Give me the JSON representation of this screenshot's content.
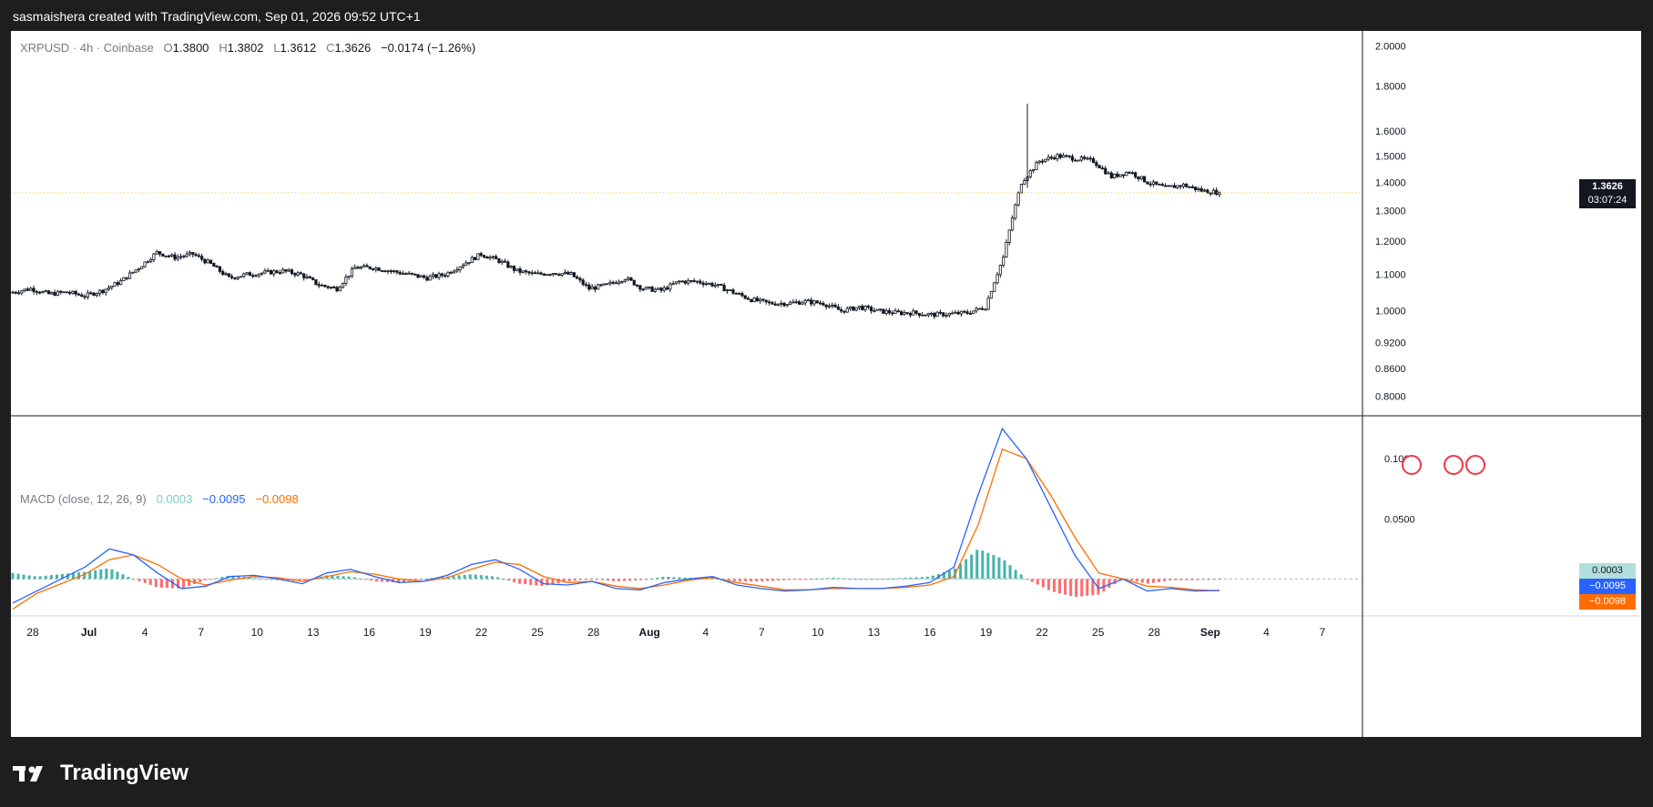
{
  "header": {
    "attribution": "sasmaishera created with TradingView.com, Sep 01, 2026 09:52 UTC+1"
  },
  "brand": {
    "name": "TradingView"
  },
  "legend": {
    "symbol": "XRPUSD · 4h · Coinbase",
    "o_label": "O",
    "o": "1.3800",
    "h_label": "H",
    "h": "1.3802",
    "l_label": "L",
    "l": "1.3612",
    "c_label": "C",
    "c": "1.3626",
    "change": "−0.0174 (−1.26%)"
  },
  "macd_legend": {
    "name": "MACD (close, 12, 26, 9)",
    "hist": "0.0003",
    "macd": "−0.0095",
    "signal": "−0.0098"
  },
  "price_badge": {
    "price": "1.3626",
    "countdown": "03:07:24"
  },
  "macd_badges": {
    "hist": "0.0003",
    "macd": "−0.0095",
    "signal": "−0.0098"
  },
  "colors": {
    "up": "#089981",
    "down": "#f23645",
    "macd": "#2962ff",
    "signal": "#ff6d00",
    "hist_up": "#26a69a",
    "hist_down": "#ff5252"
  },
  "chart_data": [
    {
      "type": "candlestick",
      "title": "XRPUSD · 4h · Coinbase",
      "y_scale": "log",
      "y_ticks": [
        "2.0000",
        "1.8000",
        "1.6000",
        "1.5000",
        "1.4000",
        "1.3000",
        "1.2000",
        "1.1000",
        "1.0000",
        "0.9200",
        "0.8600",
        "0.8000"
      ],
      "x_ticks": [
        "28",
        "Jul",
        "4",
        "7",
        "10",
        "13",
        "16",
        "19",
        "22",
        "25",
        "28",
        "Aug",
        "4",
        "7",
        "10",
        "13",
        "16",
        "19",
        "22",
        "25",
        "28",
        "Sep",
        "4",
        "7"
      ],
      "close_series": [
        [
          "Jun 26",
          1.05
        ],
        [
          "Jun 27",
          1.06
        ],
        [
          "Jun 28",
          1.045
        ],
        [
          "Jun 29",
          1.05
        ],
        [
          "Jun 30",
          1.04
        ],
        [
          "Jul 1",
          1.055
        ],
        [
          "Jul 2",
          1.08
        ],
        [
          "Jul 3",
          1.12
        ],
        [
          "Jul 4",
          1.165
        ],
        [
          "Jul 5",
          1.15
        ],
        [
          "Jul 6",
          1.16
        ],
        [
          "Jul 7",
          1.13
        ],
        [
          "Jul 8",
          1.09
        ],
        [
          "Jul 9",
          1.1
        ],
        [
          "Jul 10",
          1.105
        ],
        [
          "Jul 11",
          1.11
        ],
        [
          "Jul 12",
          1.1
        ],
        [
          "Jul 13",
          1.07
        ],
        [
          "Jul 14",
          1.06
        ],
        [
          "Jul 15",
          1.12
        ],
        [
          "Jul 16",
          1.12
        ],
        [
          "Jul 17",
          1.11
        ],
        [
          "Jul 18",
          1.1
        ],
        [
          "Jul 19",
          1.09
        ],
        [
          "Jul 20",
          1.1
        ],
        [
          "Jul 21",
          1.13
        ],
        [
          "Jul 22",
          1.16
        ],
        [
          "Jul 23",
          1.14
        ],
        [
          "Jul 24",
          1.11
        ],
        [
          "Jul 25",
          1.1
        ],
        [
          "Jul 26",
          1.105
        ],
        [
          "Jul 27",
          1.1
        ],
        [
          "Jul 28",
          1.06
        ],
        [
          "Jul 29",
          1.07
        ],
        [
          "Jul 30",
          1.09
        ],
        [
          "Jul 31",
          1.06
        ],
        [
          "Aug 1",
          1.055
        ],
        [
          "Aug 2",
          1.08
        ],
        [
          "Aug 3",
          1.08
        ],
        [
          "Aug 4",
          1.07
        ],
        [
          "Aug 5",
          1.05
        ],
        [
          "Aug 6",
          1.03
        ],
        [
          "Aug 7",
          1.02
        ],
        [
          "Aug 8",
          1.02
        ],
        [
          "Aug 9",
          1.025
        ],
        [
          "Aug 10",
          1.02
        ],
        [
          "Aug 11",
          1.0
        ],
        [
          "Aug 12",
          1.01
        ],
        [
          "Aug 13",
          1.0
        ],
        [
          "Aug 14",
          0.995
        ],
        [
          "Aug 15",
          0.995
        ],
        [
          "Aug 16",
          0.99
        ],
        [
          "Aug 17",
          0.992
        ],
        [
          "Aug 18",
          0.995
        ],
        [
          "Aug 19",
          1.01
        ],
        [
          "Aug 20",
          1.15
        ],
        [
          "Aug 21",
          1.4
        ],
        [
          "Aug 22",
          1.48
        ],
        [
          "Aug 23",
          1.5
        ],
        [
          "Aug 24",
          1.49
        ],
        [
          "Aug 25",
          1.48
        ],
        [
          "Aug 26",
          1.42
        ],
        [
          "Aug 27",
          1.44
        ],
        [
          "Aug 28",
          1.4
        ],
        [
          "Aug 29",
          1.38
        ],
        [
          "Aug 30",
          1.39
        ],
        [
          "Aug 31",
          1.37
        ],
        [
          "Sep 1",
          1.3626
        ]
      ],
      "last": {
        "open": 1.38,
        "high": 1.3802,
        "low": 1.3612,
        "close": 1.3626
      },
      "spike_high": 1.72
    },
    {
      "type": "line",
      "title": "MACD (close, 12, 26, 9)",
      "y_ticks": [
        "0.1000",
        "0.0500"
      ],
      "series": [
        {
          "name": "MACD",
          "values": [
            -0.02,
            -0.01,
            0.0,
            0.01,
            0.025,
            0.02,
            0.005,
            -0.008,
            -0.006,
            0.002,
            0.003,
            0.0,
            -0.004,
            0.005,
            0.008,
            0.002,
            -0.003,
            -0.002,
            0.003,
            0.012,
            0.016,
            0.008,
            -0.004,
            -0.005,
            -0.002,
            -0.008,
            -0.009,
            -0.003,
            0.0,
            0.002,
            -0.005,
            -0.008,
            -0.01,
            -0.009,
            -0.007,
            -0.008,
            -0.008,
            -0.006,
            -0.003,
            0.01,
            0.07,
            0.125,
            0.1,
            0.06,
            0.02,
            -0.008,
            0.0,
            -0.01,
            -0.008,
            -0.01,
            -0.0095
          ]
        },
        {
          "name": "Signal",
          "values": [
            -0.025,
            -0.012,
            -0.004,
            0.004,
            0.016,
            0.02,
            0.012,
            0.0,
            -0.005,
            -0.001,
            0.002,
            0.001,
            -0.002,
            0.002,
            0.006,
            0.004,
            0.0,
            -0.002,
            0.001,
            0.008,
            0.014,
            0.012,
            0.002,
            -0.003,
            -0.002,
            -0.006,
            -0.008,
            -0.005,
            -0.001,
            0.001,
            -0.003,
            -0.006,
            -0.009,
            -0.009,
            -0.008,
            -0.008,
            -0.008,
            -0.007,
            -0.005,
            0.002,
            0.045,
            0.108,
            0.1,
            0.07,
            0.035,
            0.005,
            0.0,
            -0.006,
            -0.007,
            -0.009,
            -0.0098
          ]
        }
      ]
    }
  ]
}
